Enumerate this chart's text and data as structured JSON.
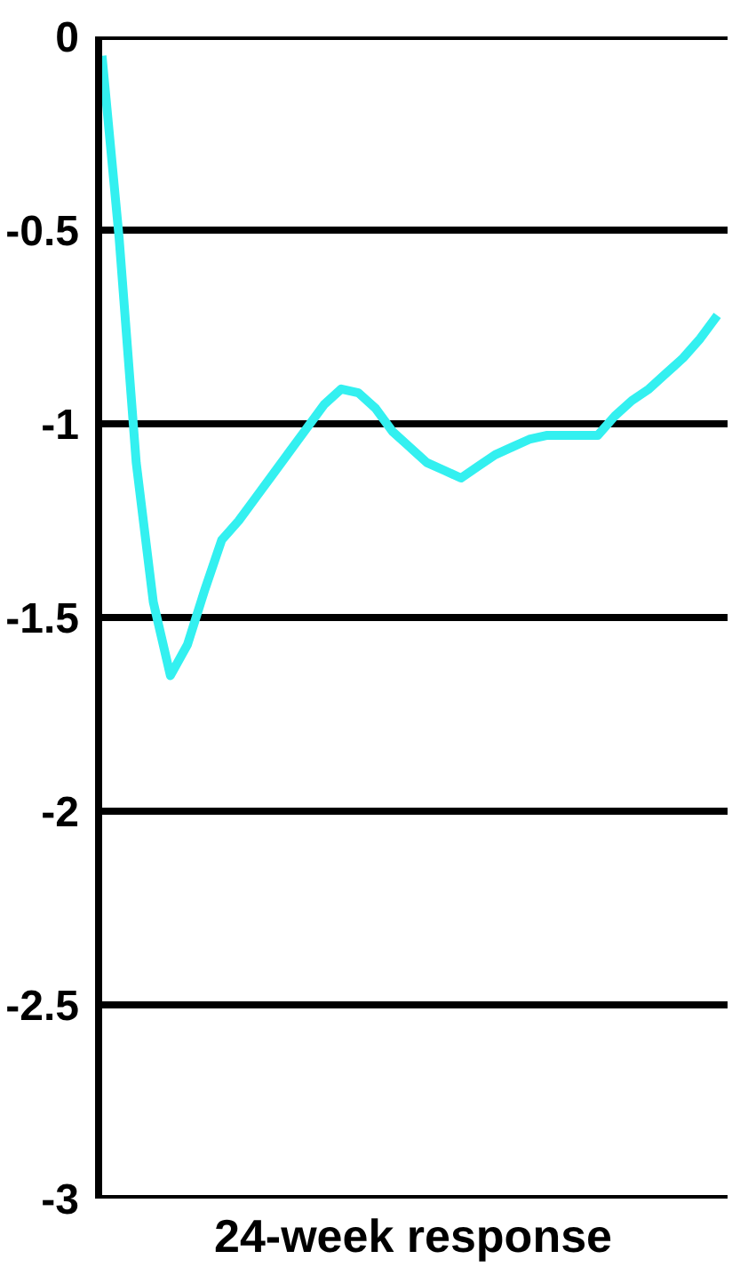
{
  "chart_data": {
    "type": "line",
    "xlabel": "24-week response",
    "categories": [
      null,
      null,
      null,
      null,
      null,
      null,
      null,
      null,
      null,
      null,
      null,
      null,
      null,
      null,
      null,
      null,
      null,
      null,
      null,
      null,
      null,
      null,
      null,
      null,
      null,
      null,
      null,
      null,
      null,
      null,
      null,
      null,
      null,
      null,
      null,
      null,
      null
    ],
    "series": [
      {
        "color": "#33f0f0",
        "values": [
          -0.05,
          -0.52,
          -1.1,
          -1.46,
          -1.65,
          -1.57,
          -1.43,
          -1.3,
          -1.25,
          -1.19,
          -1.13,
          -1.07,
          -1.01,
          -0.95,
          -0.91,
          -0.92,
          -0.96,
          -1.02,
          -1.06,
          -1.1,
          -1.12,
          -1.14,
          -1.11,
          -1.08,
          -1.06,
          -1.04,
          -1.03,
          -1.03,
          -1.03,
          -1.03,
          -0.98,
          -0.94,
          -0.91,
          -0.87,
          -0.83,
          -0.78,
          -0.72
        ]
      }
    ],
    "ylim": [
      -3,
      0
    ],
    "yticks": [
      0,
      -0.5,
      -1,
      -1.5,
      -2,
      -2.5,
      -3
    ],
    "grid": "y",
    "tick_labels": "y",
    "marker": "none",
    "line_style": "solid"
  }
}
